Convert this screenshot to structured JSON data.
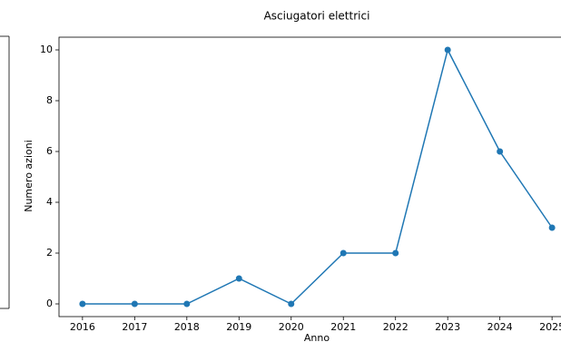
{
  "chart_data": {
    "type": "line",
    "title": "Asciugatori elettrici",
    "x_label": "Anno",
    "y_label": "Numero azioni",
    "x": [
      2016,
      2017,
      2018,
      2019,
      2020,
      2021,
      2022,
      2023,
      2024,
      2025
    ],
    "series": [
      {
        "color": "#1f77b4",
        "values": [
          0,
          0,
          0,
          1,
          0,
          2,
          2,
          10,
          6,
          3
        ]
      }
    ],
    "xlim": [
      2015.55,
      2025.45
    ],
    "xticks": [
      2016,
      2017,
      2018,
      2019,
      2020,
      2021,
      2022,
      2023,
      2024,
      2025
    ],
    "ylim": [
      -0.5,
      10.5
    ],
    "yticks": [
      0,
      2,
      4,
      6,
      8,
      10
    ],
    "grid": false
  }
}
